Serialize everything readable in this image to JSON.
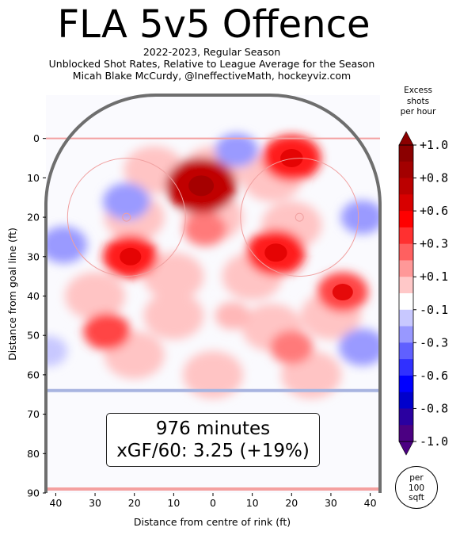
{
  "header": {
    "title": "FLA 5v5 Offence",
    "subtitle_1": "2022-2023, Regular Season",
    "subtitle_2": "Unblocked Shot Rates, Relative to League Average for the Season",
    "subtitle_3": "Micah Blake McCurdy, @IneffectiveMath, hockeyviz.com"
  },
  "stats": {
    "minutes": "976 minutes",
    "xgf": "xGF/60: 3.25 (+19%)"
  },
  "colorbar": {
    "title_1": "Excess",
    "title_2": "shots",
    "title_3": "per hour",
    "labels": [
      "+1.0",
      "+0.8",
      "+0.6",
      "+0.3",
      "+0.1",
      "-0.1",
      "-0.3",
      "-0.6",
      "-0.8",
      "-1.0"
    ],
    "colors": [
      "#8b0000",
      "#a30000",
      "#bb0000",
      "#d80000",
      "#ff0000",
      "#ff3030",
      "#ff6060",
      "#ff9898",
      "#ffc8c8",
      "#ffffff",
      "#c8c8ff",
      "#9898ff",
      "#6060ff",
      "#3030ff",
      "#0000ff",
      "#0000cc",
      "#2a00a0",
      "#4b0082"
    ]
  },
  "per_area": {
    "line1": "per",
    "line2": "100",
    "line3": "sqft"
  },
  "chart_data": {
    "type": "heatmap",
    "xlabel": "Distance from centre of rink (ft)",
    "ylabel": "Distance from goal line (ft)",
    "xlim": [
      42.5,
      -42.5
    ],
    "ylim": [
      90,
      -11
    ],
    "x_ticks": [
      40,
      30,
      20,
      10,
      0,
      10,
      20,
      30,
      40
    ],
    "y_ticks": [
      0,
      10,
      20,
      30,
      40,
      50,
      60,
      70,
      80,
      90
    ],
    "value_range": [
      -1.0,
      1.0
    ],
    "hotspots": [
      {
        "x": -3,
        "y": 12,
        "value": 1.0
      },
      {
        "x": 20,
        "y": 5,
        "value": 0.7
      },
      {
        "x": 16,
        "y": 29,
        "value": 0.7
      },
      {
        "x": -21,
        "y": 30,
        "value": 0.6
      },
      {
        "x": 33,
        "y": 39,
        "value": 0.5
      },
      {
        "x": -27,
        "y": 49,
        "value": 0.4
      },
      {
        "x": 20,
        "y": 53,
        "value": 0.3
      },
      {
        "x": -2,
        "y": 23,
        "value": 0.3
      },
      {
        "x": 5,
        "y": 45,
        "value": 0.1
      },
      {
        "x": 6,
        "y": 3,
        "value": -0.3
      },
      {
        "x": -22,
        "y": 16,
        "value": -0.4
      },
      {
        "x": 38,
        "y": 20,
        "value": -0.3
      },
      {
        "x": -38,
        "y": 27,
        "value": -0.4
      },
      {
        "x": 38,
        "y": 53,
        "value": -0.4
      },
      {
        "x": -42,
        "y": 54,
        "value": -0.2
      }
    ]
  }
}
